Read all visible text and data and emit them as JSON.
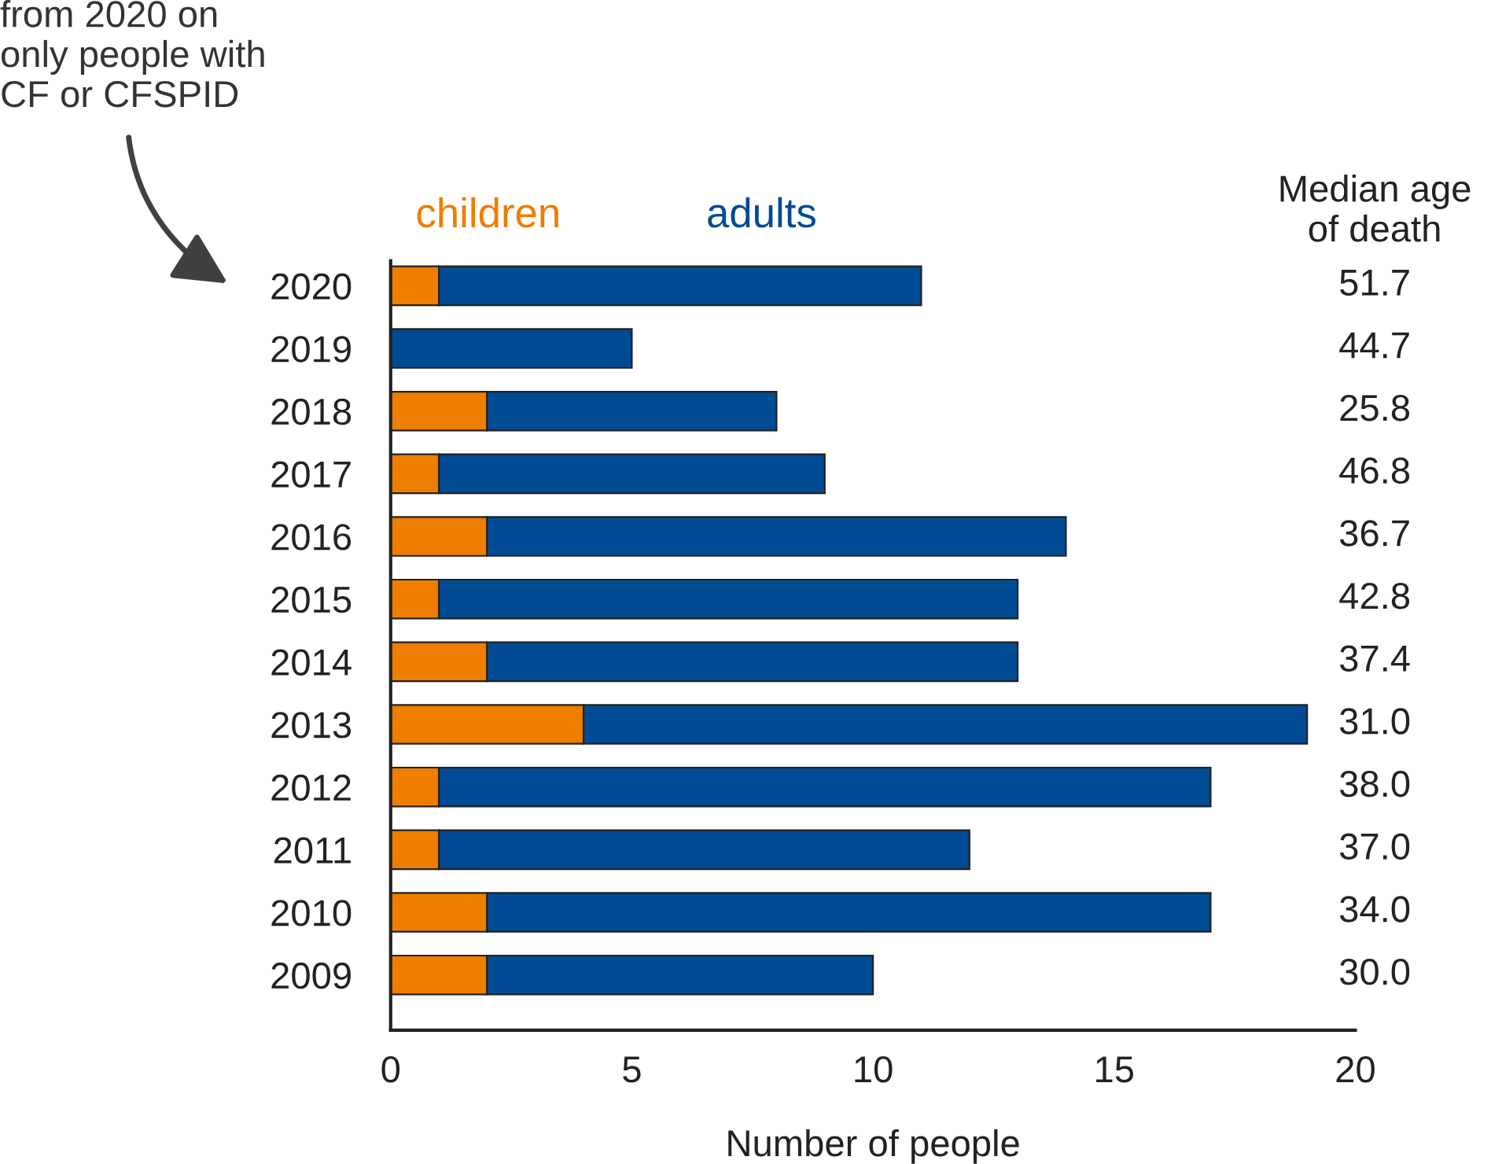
{
  "chart_data": {
    "type": "bar",
    "orientation": "horizontal",
    "stacked": true,
    "xlabel": "Number of people",
    "categories": [
      "2020",
      "2019",
      "2018",
      "2017",
      "2016",
      "2015",
      "2014",
      "2013",
      "2012",
      "2011",
      "2010",
      "2009"
    ],
    "series": [
      {
        "name": "children",
        "color": "#ef7d00",
        "values": [
          1,
          0,
          2,
          1,
          2,
          1,
          2,
          4,
          1,
          1,
          2,
          2
        ]
      },
      {
        "name": "adults",
        "color": "#004b93",
        "values": [
          10,
          5,
          6,
          8,
          12,
          12,
          11,
          15,
          16,
          11,
          15,
          8
        ]
      }
    ],
    "xlim": [
      0,
      20
    ],
    "xticks": [
      0,
      5,
      10,
      15,
      20
    ],
    "grid": false,
    "legend": "top left",
    "annotations": [
      "from 2020 on\nonly people with\nCF or CFSPID",
      "Median age\nof death",
      "51.7",
      "44.7",
      "25.8",
      "46.8",
      "36.7",
      "42.8",
      "37.4",
      "31.0",
      "38.0",
      "37.0",
      "34.0",
      "30.0"
    ]
  }
}
